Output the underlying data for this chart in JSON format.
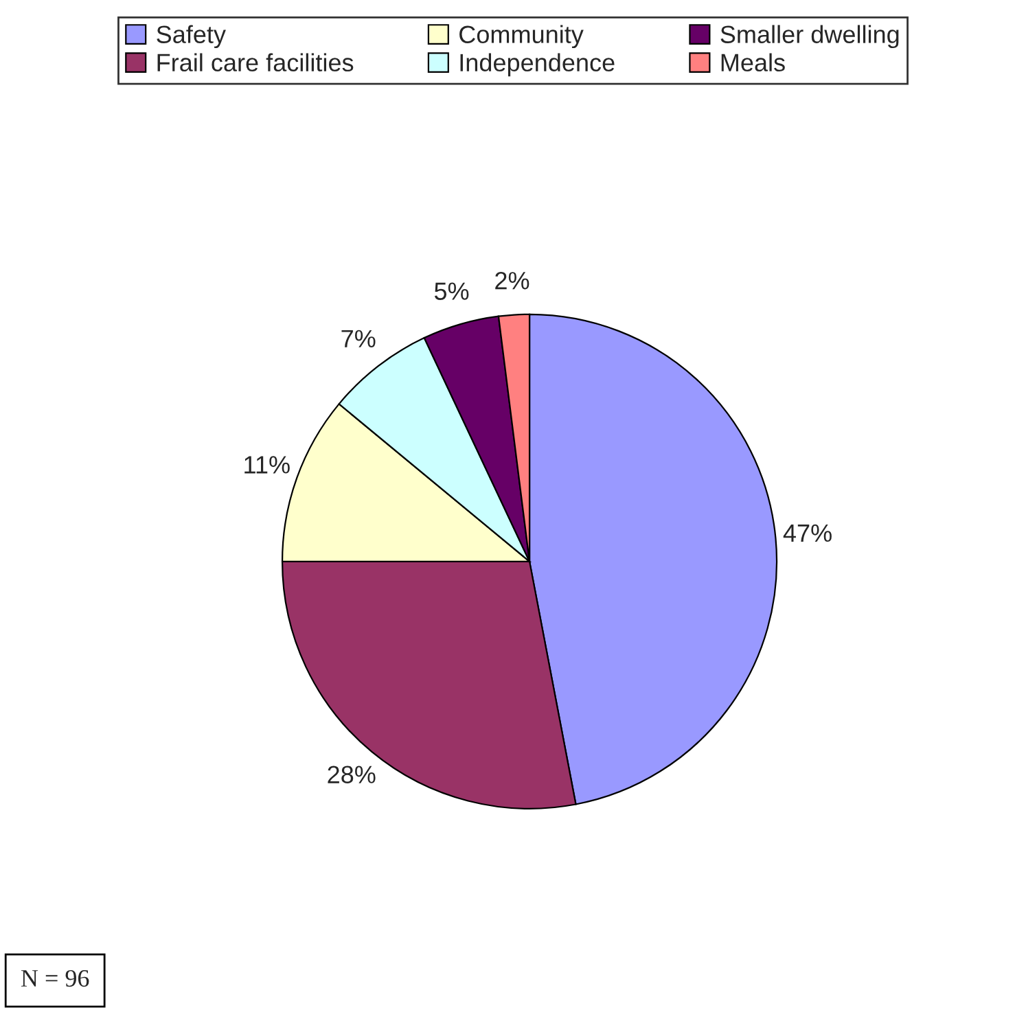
{
  "chart_data": {
    "type": "pie",
    "categories": [
      "Safety",
      "Frail care facilities",
      "Community",
      "Independence",
      "Smaller dwelling",
      "Meals"
    ],
    "values": [
      47,
      28,
      11,
      7,
      5,
      2
    ],
    "colors": [
      "#9999ff",
      "#993366",
      "#ffffcc",
      "#ccffff",
      "#660066",
      "#ff8080"
    ],
    "value_labels": [
      "47%",
      "28%",
      "11%",
      "7%",
      "5%",
      "2%"
    ],
    "legend": "top",
    "annotations": [
      "N = 96"
    ]
  }
}
